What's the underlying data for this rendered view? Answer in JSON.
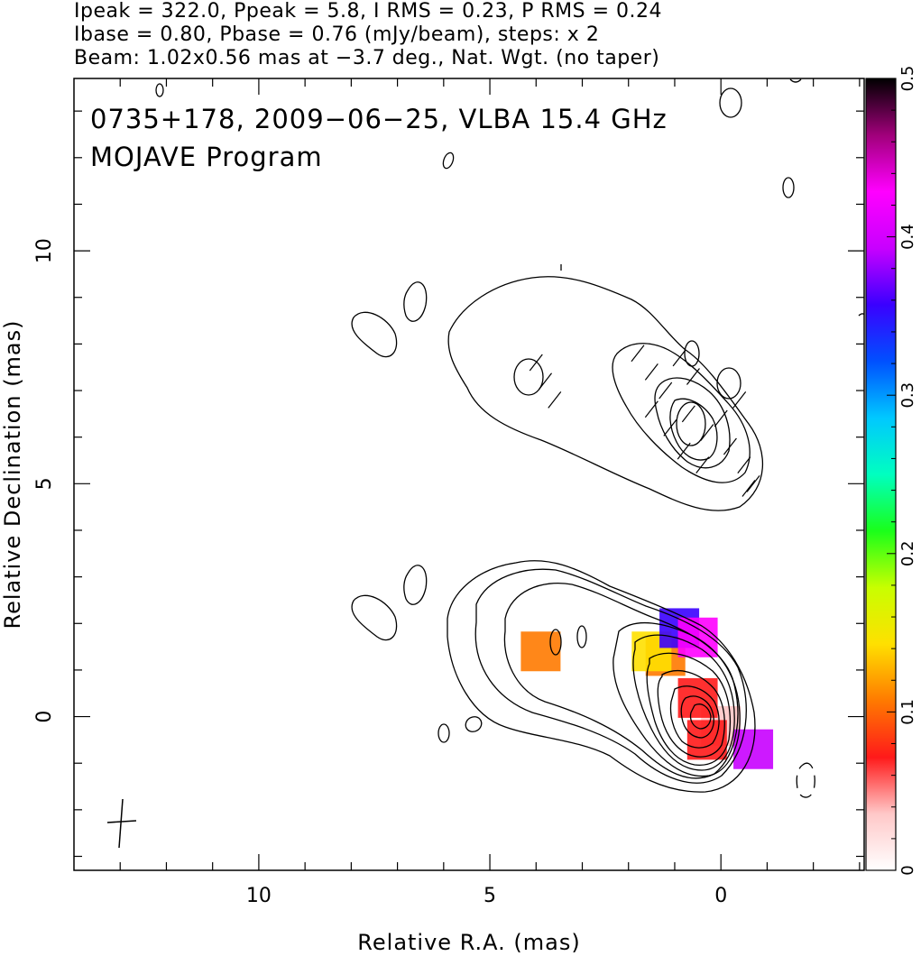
{
  "header": {
    "line1": "Ipeak = 322.0, Ppeak = 5.8, I RMS = 0.23, P RMS = 0.24",
    "line2": "Ibase = 0.80, Pbase = 0.76 (mJy/beam), steps: x 2",
    "line3": "Beam: 1.02x0.56 mas at −3.7 deg., Nat. Wgt. (no taper)"
  },
  "plot_title": {
    "line1": "0735+178, 2009−06−25, VLBA 15.4 GHz",
    "line2": "MOJAVE Program"
  },
  "chart_data": {
    "type": "heatmap",
    "xlabel": "Relative R.A. (mas)",
    "ylabel": "Relative Declination (mas)",
    "xlim": [
      14,
      -3.1
    ],
    "ylim": [
      -3.3,
      13.7
    ],
    "xticks": [
      {
        "value": 10,
        "label": "10"
      },
      {
        "value": 5,
        "label": "5"
      },
      {
        "value": 0,
        "label": "0"
      }
    ],
    "yticks": [
      {
        "value": 10,
        "label": "10"
      },
      {
        "value": 5,
        "label": "5"
      },
      {
        "value": 0,
        "label": "0"
      }
    ],
    "colorbar": {
      "range": [
        0,
        0.5
      ],
      "ticks": [
        {
          "value": 0,
          "label": "0"
        },
        {
          "value": 0.1,
          "label": "0.1"
        },
        {
          "value": 0.2,
          "label": "0.2"
        },
        {
          "value": 0.3,
          "label": "0.3"
        },
        {
          "value": 0.4,
          "label": "0.4"
        },
        {
          "value": 0.5,
          "label": "0.5"
        }
      ],
      "colors": [
        "#ffffff",
        "#ffc8c8",
        "#ff1a1a",
        "#ff7a00",
        "#ffe000",
        "#c8ff00",
        "#1aff1a",
        "#00ffc0",
        "#00c8ff",
        "#0050ff",
        "#3a00ff",
        "#c800ff",
        "#ff00ff",
        "#a0007a",
        "#000000"
      ]
    },
    "total_intensity_contours": {
      "base_mJy_per_beam": 0.8,
      "steps_factor": 2,
      "peak_mJy_per_beam": 322.0,
      "rms_mJy_per_beam": 0.23
    },
    "polarization": {
      "base_mJy_per_beam": 0.76,
      "peak_mJy_per_beam": 5.8,
      "rms_mJy_per_beam": 0.24
    },
    "fractional_polarization_regions": [
      {
        "x": 0.0,
        "y": -0.2,
        "value": 0.05
      },
      {
        "x": 0.5,
        "y": 0.4,
        "value": 0.08
      },
      {
        "x": 0.3,
        "y": -0.5,
        "value": 0.07
      },
      {
        "x": 1.2,
        "y": 1.3,
        "value": 0.12
      },
      {
        "x": 1.5,
        "y": 1.4,
        "value": 0.13
      },
      {
        "x": 3.9,
        "y": 1.4,
        "value": 0.12
      },
      {
        "x": 0.9,
        "y": 1.9,
        "value": 0.35
      },
      {
        "x": 0.5,
        "y": 1.7,
        "value": 0.42
      },
      {
        "x": -0.7,
        "y": -0.7,
        "value": 0.38
      }
    ],
    "evpa_ticks": [
      {
        "x": 4.0,
        "y": 7.6
      },
      {
        "x": 3.8,
        "y": 7.2
      },
      {
        "x": 3.6,
        "y": 6.8
      },
      {
        "x": 1.8,
        "y": 7.8
      },
      {
        "x": 1.5,
        "y": 7.4
      },
      {
        "x": 1.2,
        "y": 7.0
      },
      {
        "x": 0.9,
        "y": 7.7
      },
      {
        "x": 0.6,
        "y": 7.3
      },
      {
        "x": 1.5,
        "y": 6.6
      },
      {
        "x": 1.1,
        "y": 6.2
      },
      {
        "x": 0.7,
        "y": 6.5
      },
      {
        "x": 0.3,
        "y": 6.1
      },
      {
        "x": 0.0,
        "y": 6.4
      },
      {
        "x": 0.8,
        "y": 5.7
      },
      {
        "x": 0.4,
        "y": 5.4
      },
      {
        "x": -0.2,
        "y": 5.8
      },
      {
        "x": -0.5,
        "y": 5.4
      },
      {
        "x": -0.7,
        "y": 5.0
      },
      {
        "x": -0.4,
        "y": 6.8
      },
      {
        "x": -0.6,
        "y": 4.9
      }
    ]
  }
}
